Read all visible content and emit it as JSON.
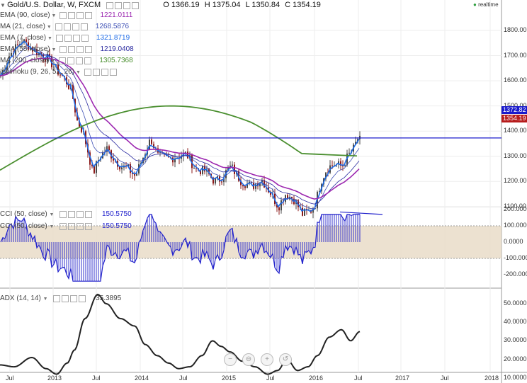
{
  "header": {
    "symbol": "Gold/U.S. Dollar, W, FXCM",
    "ohlc": {
      "o": "O 1366.19",
      "h": "H 1375.04",
      "l": "L 1350.84",
      "c": "C 1354.19"
    },
    "realtime": "realtime"
  },
  "indicators": [
    {
      "label": "EMA (90, close)",
      "value": "1221.0111",
      "color": "#9c27b0"
    },
    {
      "label": "MA (21, close)",
      "value": "1268.5876",
      "color": "#3f51b5"
    },
    {
      "label": "EMA (7, close)",
      "value": "1321.8719",
      "color": "#1e6be6"
    },
    {
      "label": "EMA (55, close)",
      "value": "1219.0408",
      "color": "#2a2aa0"
    },
    {
      "label": "MA (200, close)",
      "value": "1305.7368",
      "color": "#4a8f2f"
    },
    {
      "label": "Ichimoku (9, 26, 52, 26)",
      "value": "",
      "color": "#999999"
    }
  ],
  "cci": [
    {
      "label": "CCI (50, close)",
      "value": "150.5750",
      "color": "#2222cc"
    },
    {
      "label": "CCI (50, close)",
      "value": "150.5750",
      "color": "#2222cc"
    }
  ],
  "adx": {
    "label": "ADX (14, 14)",
    "value": "35.3895",
    "color": "#222222"
  },
  "price_axis": [
    "1800.00",
    "1700.00",
    "1600.00",
    "1500.00",
    "1400.00",
    "1300.00",
    "1200.00",
    "1100.00"
  ],
  "price_tags": {
    "line": "1372.82",
    "last": "1354.19",
    "line_color": "#1a1acc",
    "last_color": "#b71c1c"
  },
  "cci_axis": [
    "200.0000",
    "100.0000",
    "0.0000",
    "-100.0000",
    "-200.0000"
  ],
  "adx_axis": [
    "50.0000",
    "40.0000",
    "30.0000",
    "20.0000",
    "10.0000"
  ],
  "time_axis": [
    "Jul",
    "2013",
    "Jul",
    "2014",
    "Jul",
    "2015",
    "Jul",
    "2016",
    "Jul",
    "2017",
    "Jul",
    "2018"
  ],
  "zoom_controls": [
    "minus",
    "zoom-out",
    "plus",
    "restore"
  ],
  "colors": {
    "up_candle": "#4a4a4a",
    "down_candle": "#8b1a1a",
    "hline": "#1a1acc",
    "cci_band": "#e9dcc8"
  }
}
